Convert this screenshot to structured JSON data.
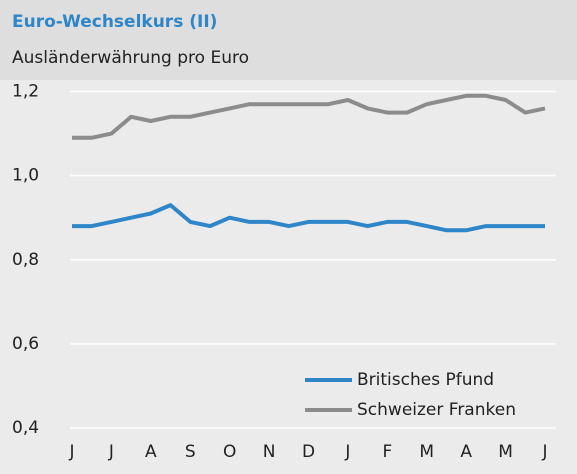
{
  "chart_data": {
    "type": "line",
    "title": "Euro-Wechselkurs (II)",
    "subtitle": "Ausländerwährung pro Euro",
    "categories": [
      "J",
      null,
      "J",
      null,
      "A",
      null,
      "S",
      null,
      "O",
      null,
      "N",
      null,
      "D",
      null,
      "J",
      null,
      "F",
      null,
      "M",
      null,
      "A",
      null,
      "M",
      null,
      "J"
    ],
    "series": [
      {
        "name": "Britisches Pfund",
        "color": "#2e86c9",
        "values": [
          0.88,
          0.88,
          0.89,
          0.9,
          0.91,
          0.93,
          0.89,
          0.88,
          0.9,
          0.89,
          0.89,
          0.88,
          0.89,
          0.89,
          0.89,
          0.88,
          0.89,
          0.89,
          0.88,
          0.87,
          0.87,
          0.88,
          0.88,
          0.88,
          0.88
        ]
      },
      {
        "name": "Schweizer Franken",
        "color": "#8c8c8c",
        "values": [
          1.09,
          1.09,
          1.1,
          1.14,
          1.13,
          1.14,
          1.14,
          1.15,
          1.16,
          1.17,
          1.17,
          1.17,
          1.17,
          1.17,
          1.18,
          1.16,
          1.15,
          1.15,
          1.17,
          1.18,
          1.19,
          1.19,
          1.18,
          1.15,
          1.16
        ]
      }
    ],
    "ylim": [
      0.4,
      1.3
    ],
    "yticks": [
      {
        "value": 0.4,
        "label": "0,4"
      },
      {
        "value": 0.6,
        "label": "0,6"
      },
      {
        "value": 0.8,
        "label": "0,8"
      },
      {
        "value": 1.0,
        "label": "1,0"
      },
      {
        "value": 1.2,
        "label": "1,2"
      }
    ],
    "grid": true,
    "legend": "lower right"
  }
}
